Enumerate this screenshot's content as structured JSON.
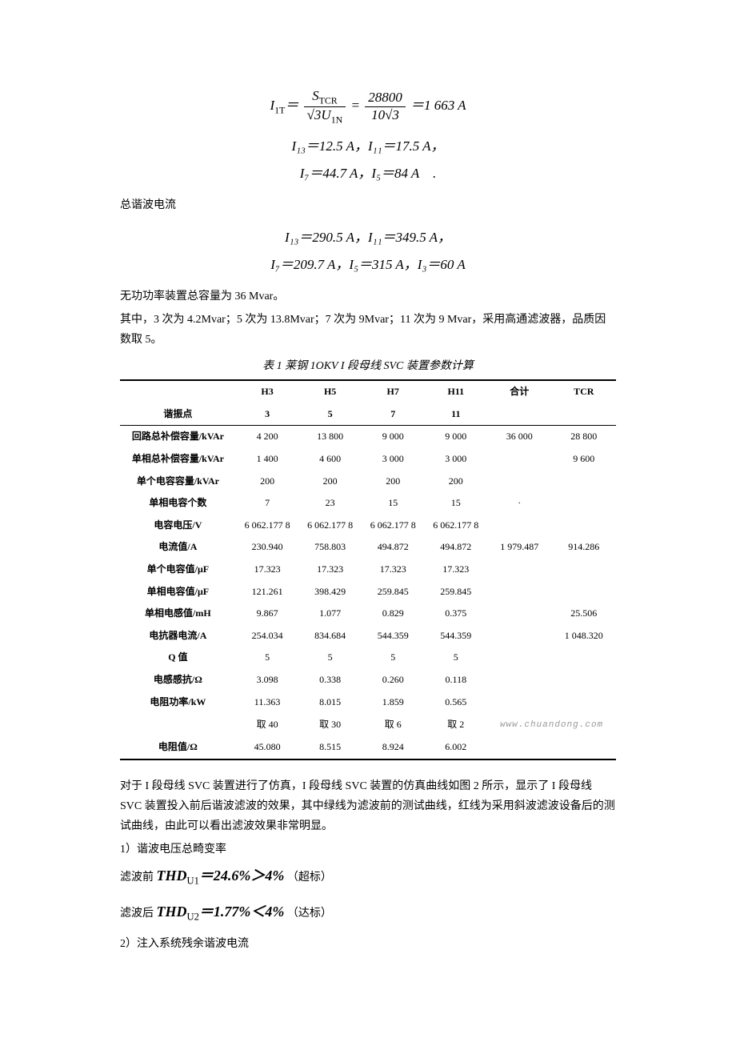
{
  "formula1": {
    "lhs": "I",
    "lhs_sub": "1T",
    "eq": "＝",
    "frac1_num": "S",
    "frac1_num_sub": "TCR",
    "frac1_den_a": "√3",
    "frac1_den_b": "U",
    "frac1_den_sub": "1N",
    "frac2_num": "28800",
    "frac2_den": "10√3",
    "result": "＝1 663 A"
  },
  "formula2_line1": "I₁₃＝12.5 A，I₁₁＝17.5 A，",
  "formula2_line2": "I₇＝44.7 A，I₅＝84 A　.",
  "section_label_1": "总谐波电流",
  "formula3_line1": "I₁₃＝290.5 A，I₁₁＝349.5 A，",
  "formula3_line2": "I₇＝209.7 A，I₅＝315 A，I₃＝60 A",
  "para1": "无功功率装置总容量为 36 Mvar。",
  "para2": "其中，3 次为 4.2Mvar；5 次为 13.8Mvar；7 次为 9Mvar；11 次为 9 Mvar，采用高通滤波器，品质因数取 5。",
  "table_caption": "表 1  莱钢 1OKV I 段母线 SVC 装置参数计算",
  "table": {
    "columns": [
      "",
      "H3",
      "H5",
      "H7",
      "H11",
      "合计",
      "TCR"
    ],
    "row_resonance": [
      "谐振点",
      "3",
      "5",
      "7",
      "11",
      "",
      ""
    ],
    "rows": [
      [
        "回路总补偿容量/kVAr",
        "4 200",
        "13 800",
        "9 000",
        "9 000",
        "36 000",
        "28 800"
      ],
      [
        "单相总补偿容量/kVAr",
        "1 400",
        "4 600",
        "3 000",
        "3 000",
        "",
        "9 600"
      ],
      [
        "单个电容容量/kVAr",
        "200",
        "200",
        "200",
        "200",
        "",
        ""
      ],
      [
        "单相电容个数",
        "7",
        "23",
        "15",
        "15",
        "·",
        ""
      ],
      [
        "电容电压/V",
        "6 062.177 8",
        "6 062.177 8",
        "6 062.177 8",
        "6 062.177 8",
        "",
        ""
      ],
      [
        "电流值/A",
        "230.940",
        "758.803",
        "494.872",
        "494.872",
        "1 979.487",
        "914.286"
      ],
      [
        "单个电容值/μF",
        "17.323",
        "17.323",
        "17.323",
        "17.323",
        "",
        ""
      ],
      [
        "单相电容值/μF",
        "121.261",
        "398.429",
        "259.845",
        "259.845",
        "",
        ""
      ],
      [
        "单相电感值/mH",
        "9.867",
        "1.077",
        "0.829",
        "0.375",
        "",
        "25.506"
      ],
      [
        "电抗器电流/A",
        "254.034",
        "834.684",
        "544.359",
        "544.359",
        "",
        "1 048.320"
      ],
      [
        "Q 值",
        "5",
        "5",
        "5",
        "5",
        "",
        ""
      ],
      [
        "电感感抗/Ω",
        "3.098",
        "0.338",
        "0.260",
        "0.118",
        "",
        ""
      ],
      [
        "电阻功率/kW",
        "11.363",
        "8.015",
        "1.859",
        "0.565",
        "",
        ""
      ],
      [
        "",
        "取 40",
        "取 30",
        "取 6",
        "取 2",
        "",
        ""
      ],
      [
        "电阻值/Ω",
        "45.080",
        "8.515",
        "8.924",
        "6.002",
        "",
        ""
      ]
    ],
    "watermark": "www.chuandong.com"
  },
  "para3": "对于 I 段母线 SVC 装置进行了仿真，I 段母线 SVC 装置的仿真曲线如图 2 所示，显示了 I 段母线 SVC 装置投入前后谐波滤波的效果，其中绿线为滤波前的测试曲线，红线为采用斜波滤波设备后的测试曲线，由此可以看出滤波效果非常明显。",
  "item1_label": "1）谐波电压总畸变率",
  "thd_before_prefix": "滤波前",
  "thd_before_formula": "THD",
  "thd_before_sub": "U1",
  "thd_before_val": "＝24.6%＞4%",
  "thd_before_note": "（超标）",
  "thd_after_prefix": "滤波后",
  "thd_after_formula": "THD",
  "thd_after_sub": "U2",
  "thd_after_val": "＝1.77%＜4%",
  "thd_after_note": "（达标）",
  "item2_label": "2）注入系统残余谐波电流"
}
